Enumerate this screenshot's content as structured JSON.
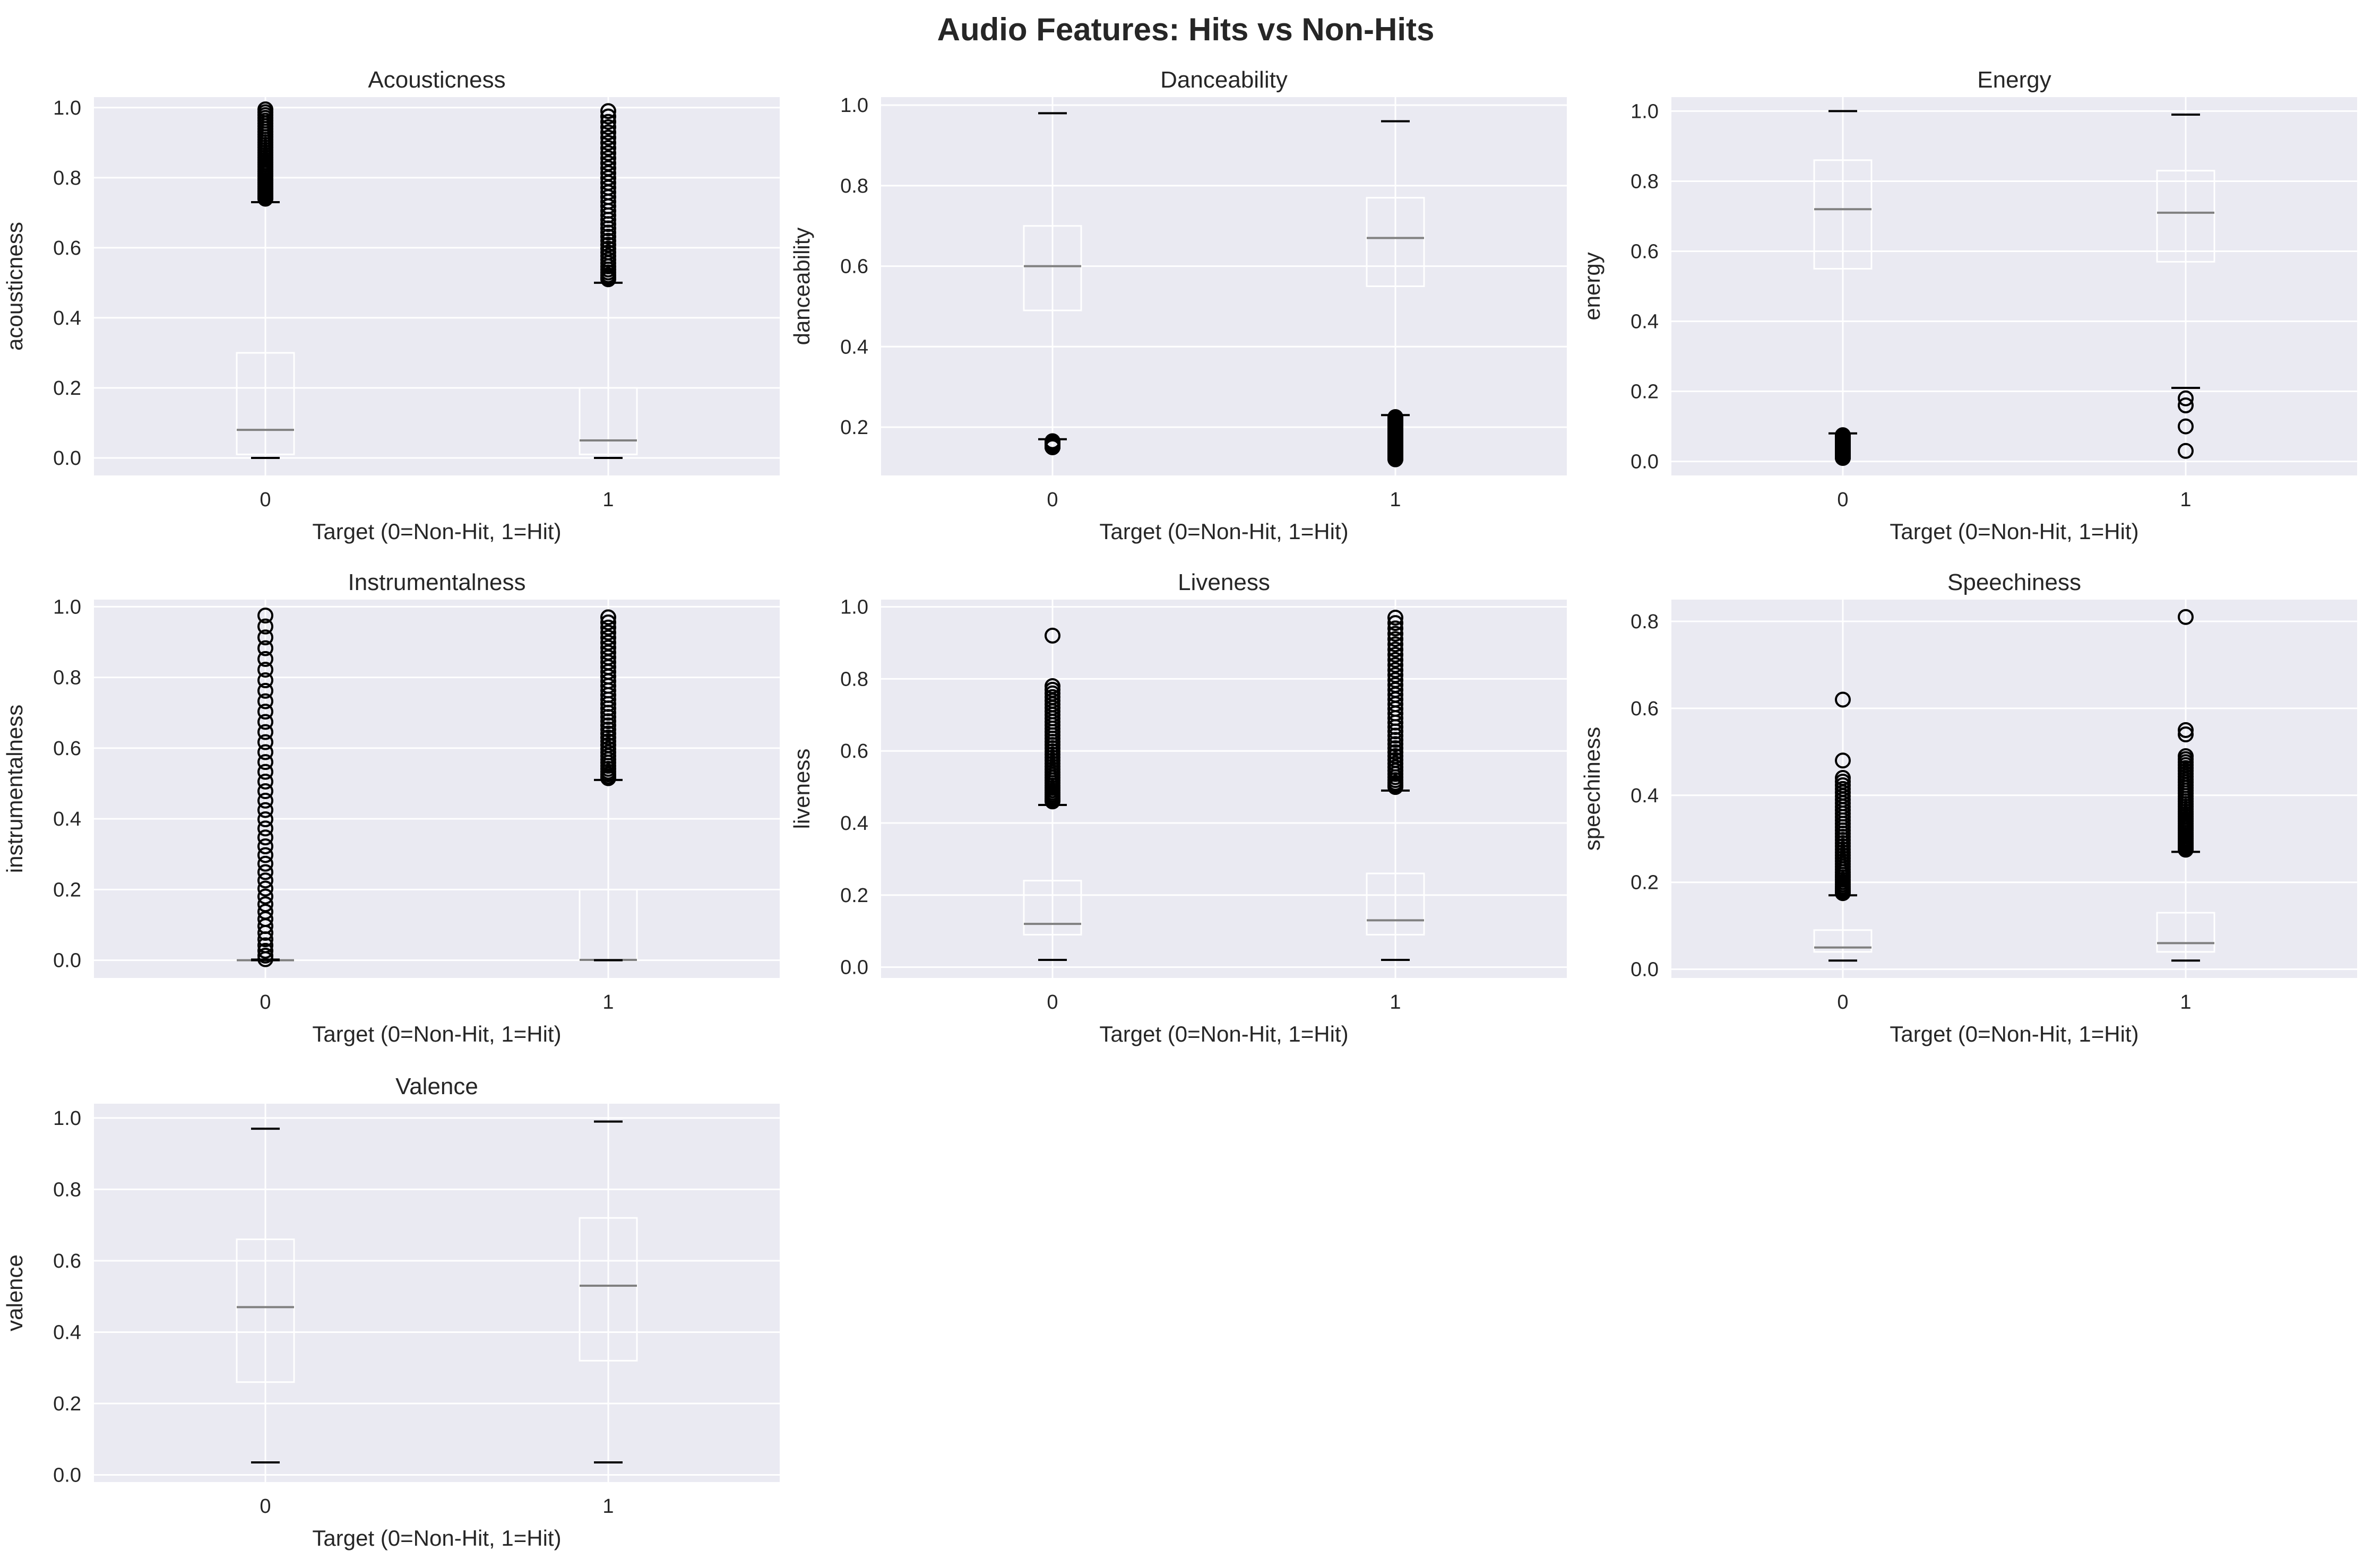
{
  "figure": {
    "title": "Audio Features: Hits vs Non-Hits"
  },
  "colors": {
    "panel_bg": "#EAEAF2",
    "grid": "#FFFFFF",
    "box": "#FFFFFF",
    "median": "#808080",
    "cap": "#000000",
    "flier": "#000000",
    "text": "#262626"
  },
  "chart_data": [
    {
      "type": "box",
      "title": "Acousticness",
      "xlabel": "Target (0=Non-Hit, 1=Hit)",
      "ylabel": "acousticness",
      "categories": [
        "0",
        "1"
      ],
      "ylim": [
        -0.05,
        1.03
      ],
      "yticks": [
        0.0,
        0.2,
        0.4,
        0.6,
        0.8,
        1.0
      ],
      "ytick_labels": [
        "0.0",
        "0.2",
        "0.4",
        "0.6",
        "0.8",
        "1.0"
      ],
      "grid": true,
      "boxes": [
        {
          "category": "0",
          "whislo": 0.0,
          "q1": 0.01,
          "med": 0.08,
          "q3": 0.3,
          "whishi": 0.73,
          "fliers_range": [
            0.74,
            0.995
          ]
        },
        {
          "category": "1",
          "whislo": 0.0,
          "q1": 0.01,
          "med": 0.05,
          "q3": 0.2,
          "whishi": 0.5,
          "fliers_range": [
            0.51,
            0.99
          ]
        }
      ]
    },
    {
      "type": "box",
      "title": "Danceability",
      "xlabel": "Target (0=Non-Hit, 1=Hit)",
      "ylabel": "danceability",
      "categories": [
        "0",
        "1"
      ],
      "ylim": [
        0.08,
        1.02
      ],
      "yticks": [
        0.2,
        0.4,
        0.6,
        0.8,
        1.0
      ],
      "ytick_labels": [
        "0.2",
        "0.4",
        "0.6",
        "0.8",
        "1.0"
      ],
      "grid": true,
      "boxes": [
        {
          "category": "0",
          "whislo": 0.17,
          "q1": 0.49,
          "med": 0.6,
          "q3": 0.7,
          "whishi": 0.98,
          "fliers_range": [
            0.15,
            0.165
          ]
        },
        {
          "category": "1",
          "whislo": 0.23,
          "q1": 0.55,
          "med": 0.67,
          "q3": 0.77,
          "whishi": 0.96,
          "fliers_range": [
            0.12,
            0.225
          ]
        }
      ]
    },
    {
      "type": "box",
      "title": "Energy",
      "xlabel": "Target (0=Non-Hit, 1=Hit)",
      "ylabel": "energy",
      "categories": [
        "0",
        "1"
      ],
      "ylim": [
        -0.04,
        1.04
      ],
      "yticks": [
        0.0,
        0.2,
        0.4,
        0.6,
        0.8,
        1.0
      ],
      "ytick_labels": [
        "0.0",
        "0.2",
        "0.4",
        "0.6",
        "0.8",
        "1.0"
      ],
      "grid": true,
      "boxes": [
        {
          "category": "0",
          "whislo": 0.08,
          "q1": 0.55,
          "med": 0.72,
          "q3": 0.86,
          "whishi": 1.0,
          "fliers_range": [
            0.01,
            0.075
          ]
        },
        {
          "category": "1",
          "whislo": 0.21,
          "q1": 0.57,
          "med": 0.71,
          "q3": 0.83,
          "whishi": 0.99,
          "fliers": [
            0.03,
            0.1,
            0.16,
            0.18
          ]
        }
      ]
    },
    {
      "type": "box",
      "title": "Instrumentalness",
      "xlabel": "Target (0=Non-Hit, 1=Hit)",
      "ylabel": "instrumentalness",
      "categories": [
        "0",
        "1"
      ],
      "ylim": [
        -0.05,
        1.02
      ],
      "yticks": [
        0.0,
        0.2,
        0.4,
        0.6,
        0.8,
        1.0
      ],
      "ytick_labels": [
        "0.0",
        "0.2",
        "0.4",
        "0.6",
        "0.8",
        "1.0"
      ],
      "grid": true,
      "boxes": [
        {
          "category": "0",
          "whislo": 0.0,
          "q1": 0.0,
          "med": 0.0,
          "q3": 0.001,
          "whishi": 0.002,
          "fliers_range": [
            0.003,
            0.975
          ]
        },
        {
          "category": "1",
          "whislo": 0.0,
          "q1": 0.0,
          "med": 0.001,
          "q3": 0.2,
          "whishi": 0.51,
          "fliers_range": [
            0.515,
            0.97
          ]
        }
      ]
    },
    {
      "type": "box",
      "title": "Liveness",
      "xlabel": "Target (0=Non-Hit, 1=Hit)",
      "ylabel": "liveness",
      "categories": [
        "0",
        "1"
      ],
      "ylim": [
        -0.03,
        1.02
      ],
      "yticks": [
        0.0,
        0.2,
        0.4,
        0.6,
        0.8,
        1.0
      ],
      "ytick_labels": [
        "0.0",
        "0.2",
        "0.4",
        "0.6",
        "0.8",
        "1.0"
      ],
      "grid": true,
      "boxes": [
        {
          "category": "0",
          "whislo": 0.02,
          "q1": 0.09,
          "med": 0.12,
          "q3": 0.24,
          "whishi": 0.45,
          "fliers_range": [
            0.46,
            0.78
          ],
          "fliers": [
            0.92
          ]
        },
        {
          "category": "1",
          "whislo": 0.02,
          "q1": 0.09,
          "med": 0.13,
          "q3": 0.26,
          "whishi": 0.49,
          "fliers_range": [
            0.5,
            0.97
          ]
        }
      ]
    },
    {
      "type": "box",
      "title": "Speechiness",
      "xlabel": "Target (0=Non-Hit, 1=Hit)",
      "ylabel": "speechiness",
      "categories": [
        "0",
        "1"
      ],
      "ylim": [
        -0.02,
        0.85
      ],
      "yticks": [
        0.0,
        0.2,
        0.4,
        0.6,
        0.8
      ],
      "ytick_labels": [
        "0.0",
        "0.2",
        "0.4",
        "0.6",
        "0.8"
      ],
      "grid": true,
      "boxes": [
        {
          "category": "0",
          "whislo": 0.02,
          "q1": 0.04,
          "med": 0.05,
          "q3": 0.09,
          "whishi": 0.17,
          "fliers_range": [
            0.175,
            0.44
          ],
          "fliers": [
            0.48,
            0.62
          ]
        },
        {
          "category": "1",
          "whislo": 0.02,
          "q1": 0.04,
          "med": 0.06,
          "q3": 0.13,
          "whishi": 0.27,
          "fliers_range": [
            0.275,
            0.49
          ],
          "fliers": [
            0.54,
            0.55,
            0.81
          ]
        }
      ]
    },
    {
      "type": "box",
      "title": "Valence",
      "xlabel": "Target (0=Non-Hit, 1=Hit)",
      "ylabel": "valence",
      "categories": [
        "0",
        "1"
      ],
      "ylim": [
        -0.02,
        1.04
      ],
      "yticks": [
        0.0,
        0.2,
        0.4,
        0.6,
        0.8,
        1.0
      ],
      "ytick_labels": [
        "0.0",
        "0.2",
        "0.4",
        "0.6",
        "0.8",
        "1.0"
      ],
      "grid": true,
      "boxes": [
        {
          "category": "0",
          "whislo": 0.035,
          "q1": 0.26,
          "med": 0.47,
          "q3": 0.66,
          "whishi": 0.97,
          "fliers": []
        },
        {
          "category": "1",
          "whislo": 0.035,
          "q1": 0.32,
          "med": 0.53,
          "q3": 0.72,
          "whishi": 0.99,
          "fliers": []
        }
      ]
    }
  ]
}
